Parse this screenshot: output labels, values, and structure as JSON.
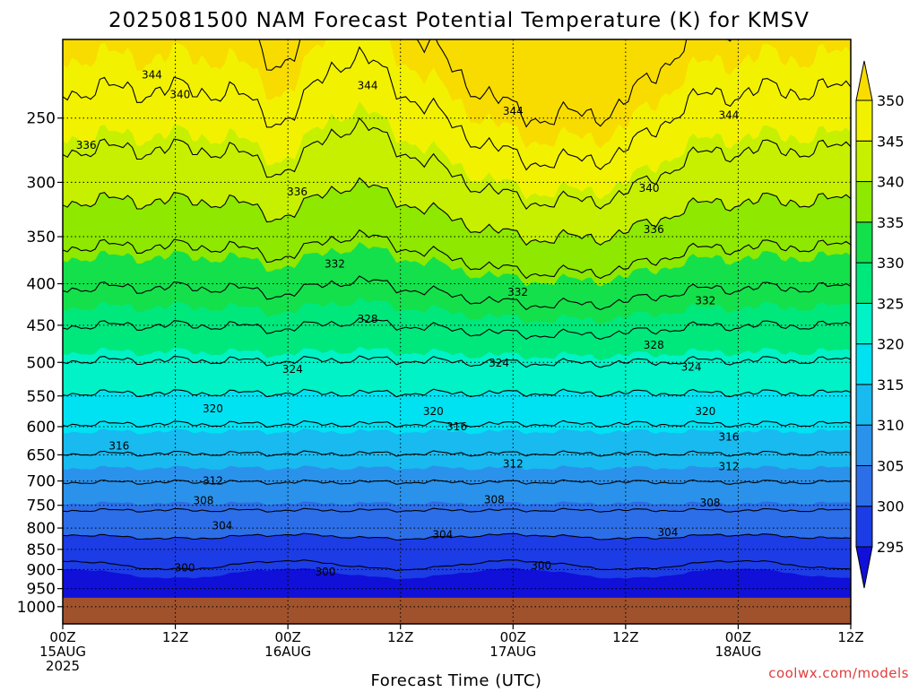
{
  "chart_data": {
    "type": "heatmap",
    "title": "2025081500 NAM Forecast Potential Temperature (K) for KMSV",
    "xlabel": "Forecast Time (UTC)",
    "ylabel": "",
    "y_scale": "log-pressure",
    "y_inverted": true,
    "y_ticks": [
      "250",
      "300",
      "350",
      "400",
      "450",
      "500",
      "550",
      "600",
      "650",
      "700",
      "750",
      "800",
      "850",
      "900",
      "950",
      "1000"
    ],
    "y_tick_values": [
      250,
      300,
      350,
      400,
      450,
      500,
      550,
      600,
      650,
      700,
      750,
      800,
      850,
      900,
      950,
      1000
    ],
    "ylim": [
      1000,
      200
    ],
    "x_ticks": [
      {
        "lines": [
          "00Z",
          "15AUG",
          "2025"
        ]
      },
      {
        "lines": [
          "12Z"
        ]
      },
      {
        "lines": [
          "00Z",
          "16AUG"
        ]
      },
      {
        "lines": [
          "12Z"
        ]
      },
      {
        "lines": [
          "00Z",
          "17AUG"
        ]
      },
      {
        "lines": [
          "12Z"
        ]
      },
      {
        "lines": [
          "00Z",
          "18AUG"
        ]
      },
      {
        "lines": [
          "12Z"
        ]
      }
    ],
    "x_hours": [
      0,
      12,
      24,
      36,
      48,
      60,
      72,
      84
    ],
    "xlim": [
      0,
      84
    ],
    "grid": true,
    "colorbar": {
      "levels": [
        295,
        300,
        305,
        310,
        315,
        320,
        325,
        330,
        335,
        340,
        345,
        350
      ],
      "labels": [
        "295",
        "300",
        "305",
        "310",
        "315",
        "320",
        "325",
        "330",
        "335",
        "340",
        "345",
        "350"
      ],
      "colors": [
        "#1010d8",
        "#1c3ce6",
        "#2c6ee8",
        "#2a92ea",
        "#18baf0",
        "#00e2f2",
        "#00f2c6",
        "#00e87c",
        "#14e04c",
        "#8ee800",
        "#c6f000",
        "#f2f200",
        "#f8dc00"
      ],
      "extend": "both"
    },
    "contour_interval_k": 4,
    "contour_labels": [
      {
        "text": "344",
        "t": 9.5,
        "p": 221
      },
      {
        "text": "340",
        "t": 12.5,
        "p": 234
      },
      {
        "text": "336",
        "t": 2.5,
        "p": 270
      },
      {
        "text": "336",
        "t": 25,
        "p": 308
      },
      {
        "text": "344",
        "t": 32.5,
        "p": 228
      },
      {
        "text": "344",
        "t": 48,
        "p": 245
      },
      {
        "text": "344",
        "t": 71,
        "p": 248
      },
      {
        "text": "340",
        "t": 62.5,
        "p": 305
      },
      {
        "text": "336",
        "t": 63,
        "p": 343
      },
      {
        "text": "332",
        "t": 29,
        "p": 378
      },
      {
        "text": "332",
        "t": 48.5,
        "p": 410
      },
      {
        "text": "332",
        "t": 68.5,
        "p": 420
      },
      {
        "text": "328",
        "t": 32.5,
        "p": 442
      },
      {
        "text": "328",
        "t": 63,
        "p": 476
      },
      {
        "text": "324",
        "t": 24.5,
        "p": 510
      },
      {
        "text": "324",
        "t": 46.5,
        "p": 501
      },
      {
        "text": "324",
        "t": 67,
        "p": 507
      },
      {
        "text": "320",
        "t": 16,
        "p": 570
      },
      {
        "text": "320",
        "t": 39.5,
        "p": 575
      },
      {
        "text": "320",
        "t": 68.5,
        "p": 575
      },
      {
        "text": "316",
        "t": 6,
        "p": 634
      },
      {
        "text": "316",
        "t": 42,
        "p": 600
      },
      {
        "text": "316",
        "t": 71,
        "p": 618
      },
      {
        "text": "312",
        "t": 16,
        "p": 700
      },
      {
        "text": "312",
        "t": 48,
        "p": 667
      },
      {
        "text": "312",
        "t": 71,
        "p": 672
      },
      {
        "text": "308",
        "t": 15,
        "p": 740
      },
      {
        "text": "308",
        "t": 46,
        "p": 738
      },
      {
        "text": "308",
        "t": 69,
        "p": 745
      },
      {
        "text": "304",
        "t": 17,
        "p": 795
      },
      {
        "text": "304",
        "t": 40.5,
        "p": 815
      },
      {
        "text": "304",
        "t": 64.5,
        "p": 810
      },
      {
        "text": "300",
        "t": 13,
        "p": 896
      },
      {
        "text": "300",
        "t": 28,
        "p": 906
      },
      {
        "text": "300",
        "t": 51,
        "p": 890
      }
    ],
    "credit": "coolwx.com/models"
  }
}
